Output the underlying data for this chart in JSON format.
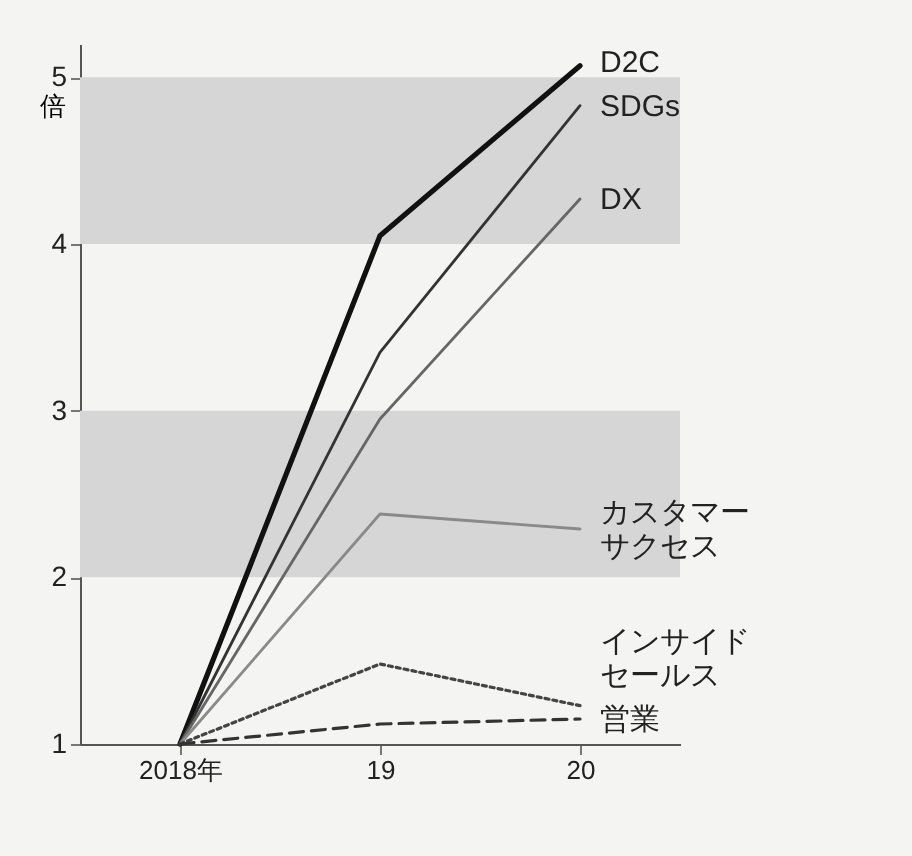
{
  "chart_data": {
    "type": "line",
    "ylabel": "倍",
    "categories": [
      "2018年",
      "19",
      "20"
    ],
    "series": [
      {
        "name": "D2C",
        "color": "#111111",
        "values": [
          1,
          4.05,
          5.07
        ]
      },
      {
        "name": "SDGs",
        "color": "#333333",
        "values": [
          1,
          3.35,
          4.83
        ]
      },
      {
        "name": "DX",
        "color": "#666666",
        "values": [
          1,
          2.95,
          4.27
        ]
      },
      {
        "name": "カスタマーサクセス",
        "color": "#8a8a8a",
        "values": [
          1,
          2.38,
          2.29
        ]
      },
      {
        "name": "インサイドセールス",
        "color": "#444444",
        "line_style": "dotted",
        "values": [
          1,
          1.48,
          1.23
        ]
      },
      {
        "name": "営業",
        "color": "#333333",
        "line_style": "dashed",
        "values": [
          1,
          1.12,
          1.15
        ]
      }
    ],
    "ylim": [
      1,
      5.2
    ],
    "yticks": [
      1,
      2,
      3,
      4,
      5
    ],
    "bands": [
      {
        "axis": "y",
        "from": 2,
        "to": 3,
        "color": "#d6d6d6"
      },
      {
        "axis": "y",
        "from": 4,
        "to": 5,
        "color": "#d6d6d6"
      }
    ],
    "grid": false,
    "marker": "none"
  }
}
